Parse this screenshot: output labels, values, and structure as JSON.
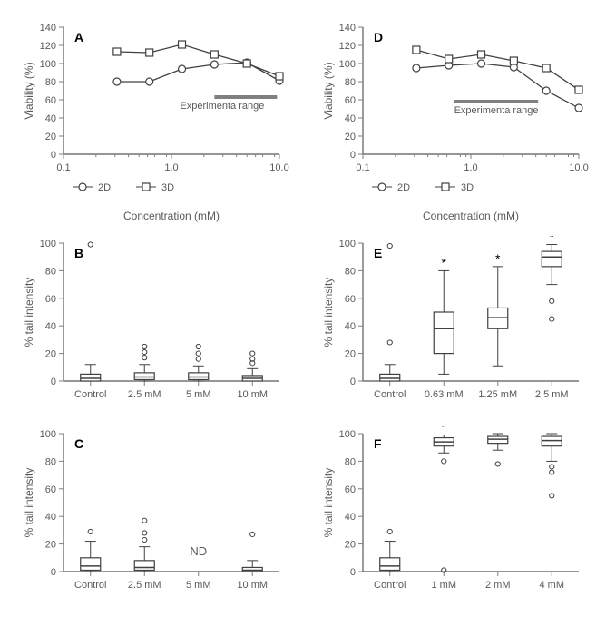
{
  "global": {
    "bg": "#ffffff",
    "axis_color": "#595959",
    "tick_color": "#7f7f7f",
    "tick_len": 5,
    "marker_stroke": "#404040",
    "text_color": "#595959",
    "range_bar_color": "#808080"
  },
  "panels": [
    {
      "id": "A",
      "row": 0,
      "col": 0,
      "type": "lineplot",
      "letter": "A",
      "ylabel": "Viability (%)",
      "xlabel": "Concentration (mM)",
      "ylim": [
        0,
        140
      ],
      "ystep": 20,
      "label_fontsize": 12,
      "tick_fontsize": 11,
      "xscale": "log",
      "xlim": [
        0.1,
        10
      ],
      "xticks": [
        0.1,
        1.0,
        10.0
      ],
      "xtick_labels": [
        "0.1",
        "1.0",
        "10.0"
      ],
      "series": [
        {
          "name": "2D",
          "marker": "circle",
          "x": [
            0.3125,
            0.625,
            1.25,
            2.5,
            5,
            10
          ],
          "y": [
            80,
            80,
            94,
            99,
            101,
            81
          ]
        },
        {
          "name": "3D",
          "marker": "square",
          "x": [
            0.3125,
            0.625,
            1.25,
            2.5,
            5,
            10
          ],
          "y": [
            113,
            112,
            121,
            110,
            100,
            86
          ]
        }
      ],
      "legend_items": [
        {
          "label": "2D",
          "marker": "circle"
        },
        {
          "label": "3D",
          "marker": "square"
        }
      ],
      "range_bar": {
        "x0": 2.5,
        "x1": 9.5,
        "y": 63
      },
      "range_label": "Experimenta range",
      "range_label_pos": {
        "x": 1.2,
        "y": 50
      }
    },
    {
      "id": "D",
      "row": 0,
      "col": 1,
      "type": "lineplot",
      "letter": "D",
      "ylabel": "Viability (%)",
      "xlabel": "Concentration (mM)",
      "ylim": [
        0,
        140
      ],
      "ystep": 20,
      "label_fontsize": 12,
      "tick_fontsize": 11,
      "xscale": "log",
      "xlim": [
        0.1,
        10
      ],
      "xticks": [
        0.1,
        1.0,
        10.0
      ],
      "xtick_labels": [
        "0.1",
        "1.0",
        "10.0"
      ],
      "series": [
        {
          "name": "2D",
          "marker": "circle",
          "x": [
            0.3125,
            0.625,
            1.25,
            2.5,
            5,
            10
          ],
          "y": [
            95,
            98,
            100,
            96,
            70,
            51
          ]
        },
        {
          "name": "3D",
          "marker": "square",
          "x": [
            0.3125,
            0.625,
            1.25,
            2.5,
            5,
            10
          ],
          "y": [
            115,
            105,
            110,
            103,
            95,
            71
          ]
        }
      ],
      "legend_items": [
        {
          "label": "2D",
          "marker": "circle"
        },
        {
          "label": "3D",
          "marker": "square"
        }
      ],
      "range_bar": {
        "x0": 0.7,
        "x1": 4.2,
        "y": 58
      },
      "range_label": "Experimenta range",
      "range_label_pos": {
        "x": 0.7,
        "y": 45
      }
    },
    {
      "id": "B",
      "row": 1,
      "col": 0,
      "type": "boxplot",
      "letter": "B",
      "ylabel": "% tail intensity",
      "ylim": [
        0,
        100
      ],
      "ystep": 20,
      "label_fontsize": 12,
      "tick_fontsize": 11,
      "categories": [
        "Control",
        "2.5 mM",
        "5 mM",
        "10 mM"
      ],
      "boxes": [
        {
          "min": 0,
          "q1": 0,
          "med": 2,
          "q3": 5,
          "max": 12,
          "outliers": [
            99
          ]
        },
        {
          "min": 0,
          "q1": 1,
          "med": 3,
          "q3": 6,
          "max": 12,
          "outliers": [
            17,
            21,
            25
          ]
        },
        {
          "min": 0,
          "q1": 1,
          "med": 3,
          "q3": 6,
          "max": 11,
          "outliers": [
            16,
            20,
            25
          ]
        },
        {
          "min": 0,
          "q1": 0,
          "med": 2,
          "q3": 4,
          "max": 9,
          "outliers": [
            13,
            16,
            20
          ]
        }
      ],
      "notes": []
    },
    {
      "id": "E",
      "row": 1,
      "col": 1,
      "type": "boxplot",
      "letter": "E",
      "ylabel": "% tail intensity",
      "ylim": [
        0,
        100
      ],
      "ystep": 20,
      "label_fontsize": 12,
      "tick_fontsize": 11,
      "categories": [
        "Control",
        "0.63 mM",
        "1.25 mM",
        "2.5 mM"
      ],
      "boxes": [
        {
          "min": 0,
          "q1": 0,
          "med": 2,
          "q3": 5,
          "max": 12,
          "outliers": [
            28,
            98
          ]
        },
        {
          "min": 5,
          "q1": 20,
          "med": 38,
          "q3": 50,
          "max": 80,
          "outliers": [],
          "star": true
        },
        {
          "min": 11,
          "q1": 38,
          "med": 46,
          "q3": 53,
          "max": 83,
          "outliers": [],
          "star": true
        },
        {
          "min": 70,
          "q1": 83,
          "med": 90,
          "q3": 94,
          "max": 99,
          "outliers": [
            45,
            58
          ],
          "star": true
        }
      ],
      "notes": []
    },
    {
      "id": "C",
      "row": 2,
      "col": 0,
      "type": "boxplot",
      "letter": "C",
      "ylabel": "% tail intensity",
      "ylim": [
        0,
        100
      ],
      "ystep": 20,
      "label_fontsize": 12,
      "tick_fontsize": 11,
      "categories": [
        "Control",
        "2.5 mM",
        "5 mM",
        "10 mM"
      ],
      "boxes": [
        {
          "min": 0,
          "q1": 1,
          "med": 4,
          "q3": 10,
          "max": 22,
          "outliers": [
            29
          ]
        },
        {
          "min": 0,
          "q1": 1,
          "med": 3,
          "q3": 8,
          "max": 18,
          "outliers": [
            23,
            28,
            37
          ]
        },
        null,
        {
          "min": 0,
          "q1": 0,
          "med": 1,
          "q3": 3,
          "max": 8,
          "outliers": [
            27
          ]
        }
      ],
      "notes": [
        {
          "cat": 2,
          "text": "ND"
        }
      ]
    },
    {
      "id": "F",
      "row": 2,
      "col": 1,
      "type": "boxplot",
      "letter": "F",
      "ylabel": "% tail intensity",
      "ylim": [
        0,
        100
      ],
      "ystep": 20,
      "label_fontsize": 12,
      "tick_fontsize": 11,
      "categories": [
        "Control",
        "1 mM",
        "2 mM",
        "4 mM"
      ],
      "boxes": [
        {
          "min": 0,
          "q1": 1,
          "med": 4,
          "q3": 10,
          "max": 22,
          "outliers": [
            29
          ]
        },
        {
          "min": 86,
          "q1": 91,
          "med": 94,
          "q3": 97,
          "max": 99,
          "outliers": [
            1,
            80
          ],
          "star": true
        },
        {
          "min": 88,
          "q1": 93,
          "med": 96,
          "q3": 98,
          "max": 100,
          "outliers": [
            78
          ],
          "star": true
        },
        {
          "min": 80,
          "q1": 91,
          "med": 95,
          "q3": 98,
          "max": 100,
          "outliers": [
            55,
            72,
            76
          ],
          "star": true
        }
      ],
      "notes": []
    }
  ]
}
